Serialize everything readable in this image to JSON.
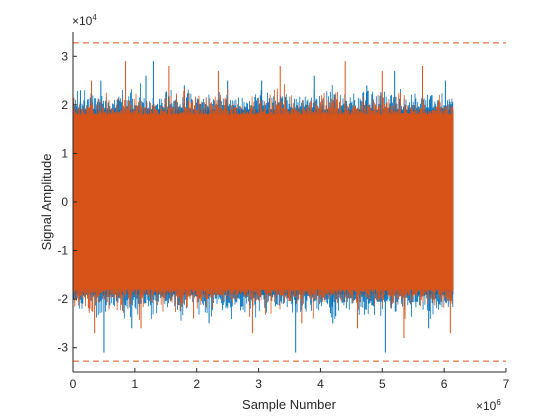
{
  "chart_data": {
    "type": "line",
    "xlabel": "Sample Number",
    "ylabel": "Signal Amplitude",
    "x_multiplier": {
      "base": "×10",
      "exponent": "6"
    },
    "y_multiplier": {
      "base": "×10",
      "exponent": "4"
    },
    "xlim": [
      0,
      7
    ],
    "ylim": [
      -3.5,
      3.5
    ],
    "x_ticks": [
      0,
      1,
      2,
      3,
      4,
      5,
      6,
      7
    ],
    "x_tick_labels": [
      "0",
      "1",
      "2",
      "3",
      "4",
      "5",
      "6",
      "7"
    ],
    "y_ticks": [
      -3,
      -2,
      -1,
      0,
      1,
      2,
      3
    ],
    "y_tick_labels": [
      "-3",
      "-2",
      "-1",
      "0",
      "1",
      "2",
      "3"
    ],
    "grid": false,
    "legend": "none",
    "series": [
      {
        "style": "noise",
        "color": "#0072BD",
        "x_range": [
          0,
          6.15
        ],
        "core_band": [
          -1.9,
          1.9
        ],
        "peaks": [
          {
            "x": 0.12,
            "y": 2.3
          },
          {
            "x": 0.45,
            "y": 2.5
          },
          {
            "x": 0.5,
            "y": -3.1
          },
          {
            "x": 0.95,
            "y": -2.6
          },
          {
            "x": 1.18,
            "y": 2.6
          },
          {
            "x": 1.3,
            "y": 2.9
          },
          {
            "x": 1.8,
            "y": 2.4
          },
          {
            "x": 2.2,
            "y": -2.5
          },
          {
            "x": 2.5,
            "y": 2.5
          },
          {
            "x": 3.05,
            "y": 2.5
          },
          {
            "x": 3.6,
            "y": -3.1
          },
          {
            "x": 3.9,
            "y": 2.6
          },
          {
            "x": 4.2,
            "y": -2.5
          },
          {
            "x": 4.75,
            "y": 2.4
          },
          {
            "x": 5.05,
            "y": -3.1
          },
          {
            "x": 5.2,
            "y": 2.7
          },
          {
            "x": 5.75,
            "y": -2.6
          },
          {
            "x": 6.02,
            "y": 2.5
          }
        ]
      },
      {
        "style": "noise",
        "color": "#D95319",
        "x_range": [
          0,
          6.15
        ],
        "core_band": [
          -1.8,
          1.8
        ],
        "peaks": [
          {
            "x": 0.3,
            "y": 2.5
          },
          {
            "x": 0.35,
            "y": -2.7
          },
          {
            "x": 0.85,
            "y": 2.9
          },
          {
            "x": 1.1,
            "y": -2.6
          },
          {
            "x": 1.55,
            "y": 2.8
          },
          {
            "x": 1.95,
            "y": -2.4
          },
          {
            "x": 2.35,
            "y": 2.7
          },
          {
            "x": 2.9,
            "y": -2.7
          },
          {
            "x": 3.35,
            "y": 2.8
          },
          {
            "x": 3.7,
            "y": -2.5
          },
          {
            "x": 4.4,
            "y": 2.9
          },
          {
            "x": 4.6,
            "y": -2.6
          },
          {
            "x": 5.0,
            "y": 2.7
          },
          {
            "x": 5.35,
            "y": -2.8
          },
          {
            "x": 5.65,
            "y": 2.8
          },
          {
            "x": 6.1,
            "y": -2.7
          }
        ]
      }
    ],
    "reference_lines": [
      {
        "y": 3.2767,
        "style": "dashed",
        "color": "#D95319"
      },
      {
        "y": -3.2767,
        "style": "dashed",
        "color": "#D95319"
      }
    ]
  }
}
